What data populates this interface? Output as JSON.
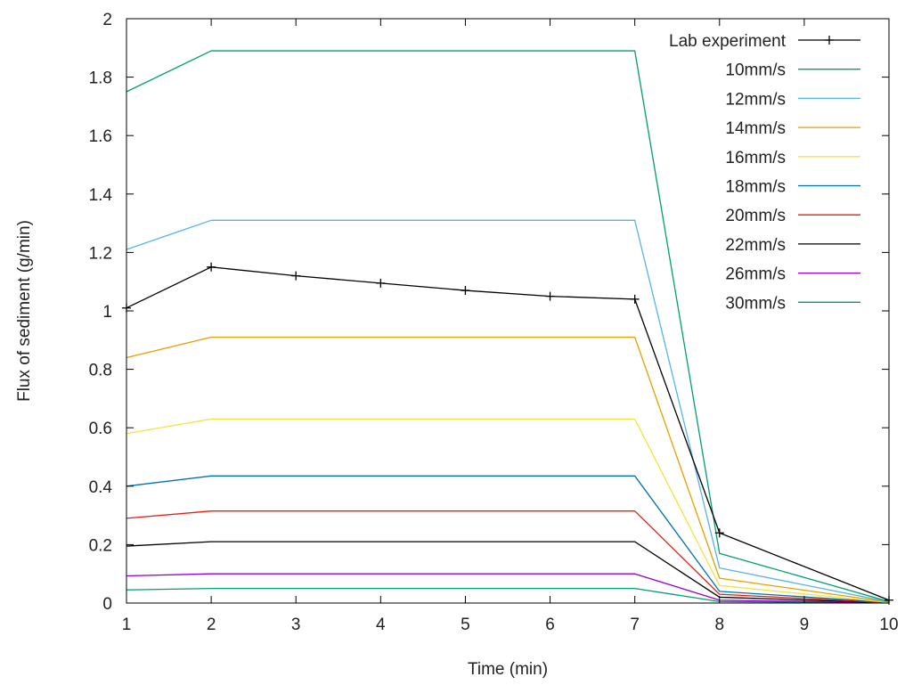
{
  "chart_data": {
    "type": "line",
    "xlabel": "Time (min)",
    "ylabel": "Flux of sediment (g/min)",
    "xlim": [
      1,
      10
    ],
    "ylim": [
      0,
      2
    ],
    "xticks": [
      1,
      2,
      3,
      4,
      5,
      6,
      7,
      8,
      9,
      10
    ],
    "yticks": [
      0,
      0.2,
      0.4,
      0.6,
      0.8,
      1,
      1.2,
      1.4,
      1.6,
      1.8,
      2
    ],
    "grid": false,
    "legend_position": "top-right",
    "series": [
      {
        "name": "Lab experiment",
        "color": "#000000",
        "marker": "plus",
        "x": [
          1,
          2,
          3,
          4,
          5,
          6,
          7,
          8,
          10
        ],
        "y": [
          1.01,
          1.15,
          1.12,
          1.095,
          1.07,
          1.05,
          1.04,
          0.24,
          0.01
        ]
      },
      {
        "name": "10mm/s",
        "color": "#009e73",
        "marker": "none",
        "x": [
          1,
          2,
          7,
          8,
          10
        ],
        "y": [
          1.75,
          1.89,
          1.89,
          0.17,
          0.005
        ]
      },
      {
        "name": "12mm/s",
        "color": "#56b4e9",
        "marker": "none",
        "x": [
          1,
          2,
          7,
          8,
          10
        ],
        "y": [
          1.21,
          1.31,
          1.31,
          0.12,
          0.004
        ]
      },
      {
        "name": "14mm/s",
        "color": "#e69f00",
        "marker": "none",
        "x": [
          1,
          2,
          7,
          8,
          10
        ],
        "y": [
          0.84,
          0.91,
          0.91,
          0.085,
          0.003
        ]
      },
      {
        "name": "16mm/s",
        "color": "#f0e442",
        "marker": "none",
        "x": [
          1,
          2,
          7,
          8,
          10
        ],
        "y": [
          0.58,
          0.63,
          0.63,
          0.06,
          0.002
        ]
      },
      {
        "name": "18mm/s",
        "color": "#0072b2",
        "marker": "none",
        "x": [
          1,
          2,
          7,
          8,
          10
        ],
        "y": [
          0.4,
          0.435,
          0.435,
          0.04,
          0.002
        ]
      },
      {
        "name": "20mm/s",
        "color": "#e51e10",
        "marker": "none",
        "x": [
          1,
          2,
          7,
          8,
          10
        ],
        "y": [
          0.29,
          0.315,
          0.315,
          0.03,
          0.001
        ]
      },
      {
        "name": "22mm/s",
        "color": "#000000",
        "marker": "none",
        "x": [
          1,
          2,
          7,
          8,
          10
        ],
        "y": [
          0.195,
          0.21,
          0.21,
          0.02,
          0.001
        ]
      },
      {
        "name": "26mm/s",
        "color": "#9400d3",
        "marker": "none",
        "x": [
          1,
          2,
          7,
          8,
          10
        ],
        "y": [
          0.093,
          0.1,
          0.1,
          0.01,
          0.0005
        ]
      },
      {
        "name": "30mm/s",
        "color": "#009e73",
        "marker": "none",
        "x": [
          1,
          2,
          7,
          8,
          10
        ],
        "y": [
          0.045,
          0.05,
          0.05,
          0.005,
          0.0003
        ]
      }
    ]
  }
}
